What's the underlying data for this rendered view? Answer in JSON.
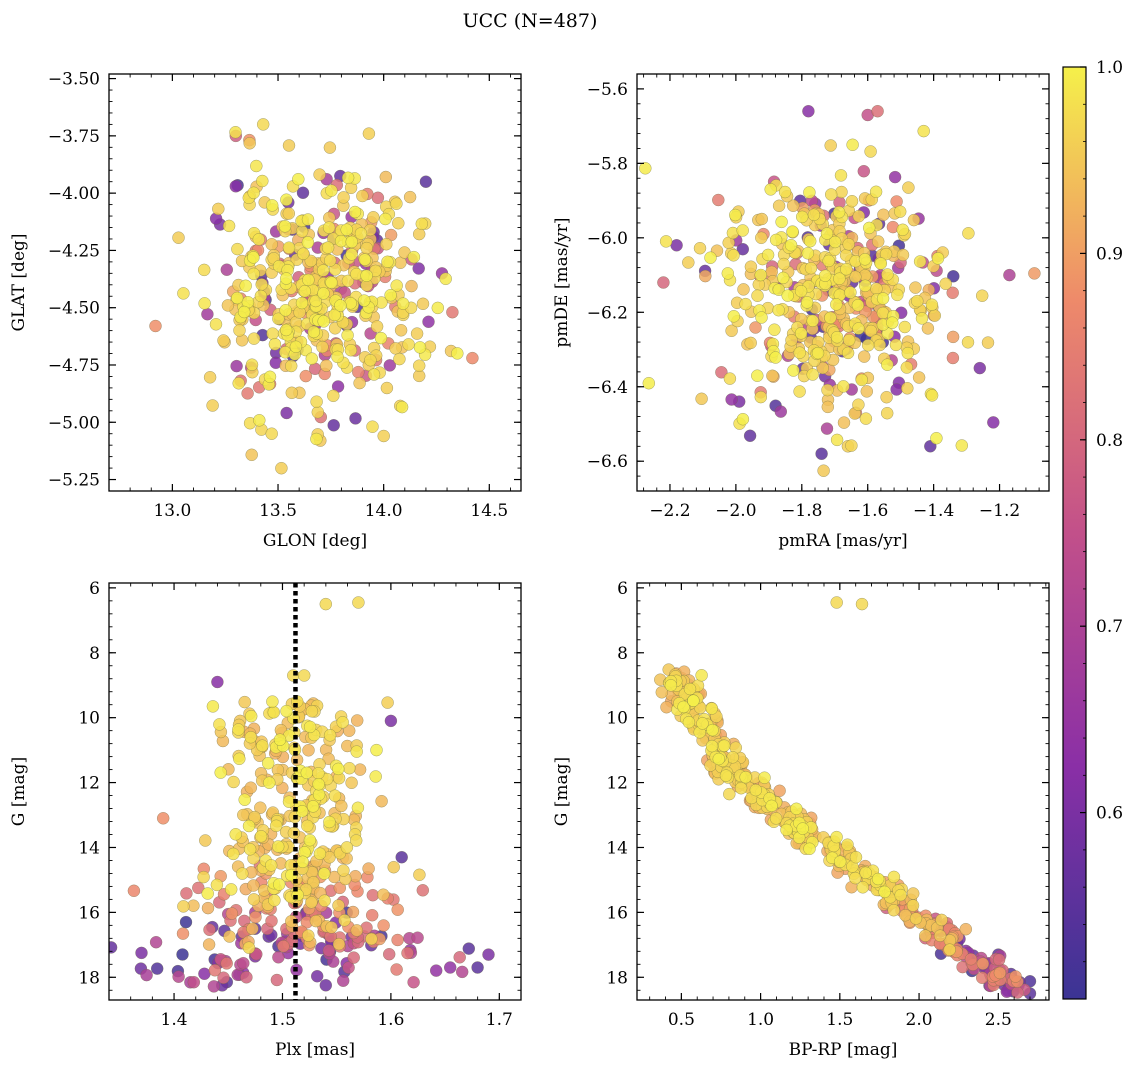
{
  "figure": {
    "title": "UCC (N=487)"
  },
  "chart_data": [
    {
      "id": "glon-glat",
      "type": "scatter",
      "xlabel": "GLON [deg]",
      "ylabel": "GLAT [deg]",
      "xlim": [
        12.7,
        14.65
      ],
      "ylim": [
        -5.3,
        -3.48
      ],
      "xticks": [
        13.0,
        13.5,
        14.0,
        14.5
      ],
      "xtick_labels": [
        "13.0",
        "13.5",
        "14.0",
        "14.5"
      ],
      "yticks": [
        -3.5,
        -3.75,
        -4.0,
        -4.25,
        -4.5,
        -4.75,
        -5.0,
        -5.25
      ],
      "ytick_labels": [
        "−3.50",
        "−3.75",
        "−4.00",
        "−4.25",
        "−4.50",
        "−4.75",
        "−5.00",
        "−5.25"
      ],
      "n_points": 487,
      "x_center": 13.67,
      "x_spread": 0.25,
      "y_center": -4.42,
      "y_spread": 0.24,
      "notable_points": [
        {
          "x": 13.43,
          "y": -3.7,
          "p": 0.97
        },
        {
          "x": 13.3,
          "y": -3.75,
          "p": 0.78
        },
        {
          "x": 13.93,
          "y": -3.74,
          "p": 0.96
        },
        {
          "x": 12.92,
          "y": -4.58,
          "p": 0.88
        },
        {
          "x": 14.42,
          "y": -4.72,
          "p": 0.87
        },
        {
          "x": 13.47,
          "y": -5.05,
          "p": 0.97
        },
        {
          "x": 13.7,
          "y": -5.08,
          "p": 0.95
        },
        {
          "x": 14.0,
          "y": -5.06,
          "p": 0.96
        },
        {
          "x": 13.3,
          "y": -3.97,
          "p": 0.62
        },
        {
          "x": 14.2,
          "y": -3.95,
          "p": 0.55
        }
      ]
    },
    {
      "id": "pmra-pmde",
      "type": "scatter",
      "xlabel": "pmRA [mas/yr]",
      "ylabel": "pmDE [mas/yr]",
      "xlim": [
        -2.3,
        -1.05
      ],
      "ylim": [
        -6.68,
        -5.56
      ],
      "xticks": [
        -2.2,
        -2.0,
        -1.8,
        -1.6,
        -1.4,
        -1.2
      ],
      "xtick_labels": [
        "−2.2",
        "−2.0",
        "−1.8",
        "−1.6",
        "−1.4",
        "−1.2"
      ],
      "yticks": [
        -5.6,
        -5.8,
        -6.0,
        -6.2,
        -6.4,
        -6.6
      ],
      "ytick_labels": [
        "−5.6",
        "−5.8",
        "−6.0",
        "−6.2",
        "−6.4",
        "−6.6"
      ],
      "n_points": 487,
      "x_center": -1.7,
      "x_spread": 0.17,
      "y_center": -6.15,
      "y_spread": 0.16,
      "notable_points": [
        {
          "x": -1.78,
          "y": -5.66,
          "p": 0.62
        },
        {
          "x": -1.57,
          "y": -5.66,
          "p": 0.82
        },
        {
          "x": -1.6,
          "y": -5.67,
          "p": 0.75
        },
        {
          "x": -1.17,
          "y": -6.1,
          "p": 0.7
        },
        {
          "x": -1.74,
          "y": -6.58,
          "p": 0.55
        },
        {
          "x": -1.41,
          "y": -6.56,
          "p": 0.56
        },
        {
          "x": -2.18,
          "y": -6.02,
          "p": 0.6
        },
        {
          "x": -2.22,
          "y": -6.12,
          "p": 0.8
        },
        {
          "x": -1.26,
          "y": -6.35,
          "p": 0.6
        },
        {
          "x": -1.99,
          "y": -6.44,
          "p": 0.6
        },
        {
          "x": -1.66,
          "y": -6.56,
          "p": 0.96
        }
      ]
    },
    {
      "id": "plx-g",
      "type": "scatter",
      "xlabel": "Plx [mas]",
      "ylabel": "G [mag]",
      "xlim": [
        1.34,
        1.72
      ],
      "ylim": [
        18.7,
        5.85
      ],
      "y_inverted": true,
      "xticks": [
        1.4,
        1.5,
        1.6,
        1.7
      ],
      "xtick_labels": [
        "1.4",
        "1.5",
        "1.6",
        "1.7"
      ],
      "yticks": [
        6,
        8,
        10,
        12,
        14,
        16,
        18
      ],
      "ytick_labels": [
        "6",
        "8",
        "10",
        "12",
        "14",
        "16",
        "18"
      ],
      "vline_x": 1.512,
      "vline_style": "dotted",
      "n_points": 487,
      "notable_points": [
        {
          "x": 1.54,
          "y": 6.5,
          "p": 0.97
        },
        {
          "x": 1.57,
          "y": 6.45,
          "p": 0.97
        },
        {
          "x": 1.51,
          "y": 8.7,
          "p": 0.97
        },
        {
          "x": 1.52,
          "y": 8.7,
          "p": 0.97
        },
        {
          "x": 1.44,
          "y": 8.9,
          "p": 0.62
        },
        {
          "x": 1.6,
          "y": 10.1,
          "p": 0.6
        },
        {
          "x": 1.39,
          "y": 13.1,
          "p": 0.88
        },
        {
          "x": 1.61,
          "y": 14.3,
          "p": 0.55
        },
        {
          "x": 1.68,
          "y": 17.7,
          "p": 0.55
        },
        {
          "x": 1.69,
          "y": 17.3,
          "p": 0.6
        },
        {
          "x": 1.37,
          "y": 17.25,
          "p": 0.6
        }
      ]
    },
    {
      "id": "bprp-g",
      "type": "scatter",
      "xlabel": "BP-RP [mag]",
      "ylabel": "G [mag]",
      "xlim": [
        0.22,
        2.82
      ],
      "ylim": [
        18.7,
        5.85
      ],
      "y_inverted": true,
      "xticks": [
        0.5,
        1.0,
        1.5,
        2.0,
        2.5
      ],
      "xtick_labels": [
        "0.5",
        "1.0",
        "1.5",
        "2.0",
        "2.5"
      ],
      "yticks": [
        6,
        8,
        10,
        12,
        14,
        16,
        18
      ],
      "ytick_labels": [
        "6",
        "8",
        "10",
        "12",
        "14",
        "16",
        "18"
      ],
      "n_points": 487,
      "notable_points": [
        {
          "x": 1.48,
          "y": 6.45,
          "p": 0.97
        },
        {
          "x": 1.64,
          "y": 6.5,
          "p": 0.97
        },
        {
          "x": 2.7,
          "y": 18.5,
          "p": 0.55
        },
        {
          "x": 2.58,
          "y": 17.9,
          "p": 0.55
        },
        {
          "x": 2.5,
          "y": 17.3,
          "p": 0.55
        }
      ]
    }
  ],
  "colorbar": {
    "label": "",
    "range": [
      0.5,
      1.0
    ],
    "ticks": [
      0.6,
      0.7,
      0.8,
      0.9,
      1.0
    ],
    "tick_labels": [
      "0.6",
      "0.7",
      "0.8",
      "0.9",
      "1.0"
    ],
    "colormap": "plasma",
    "color_low": "#3b3494",
    "color_mid_low": "#8a2fa6",
    "color_mid": "#c2508a",
    "color_mid_high": "#ee8a6a",
    "color_high": "#f5f04a"
  }
}
